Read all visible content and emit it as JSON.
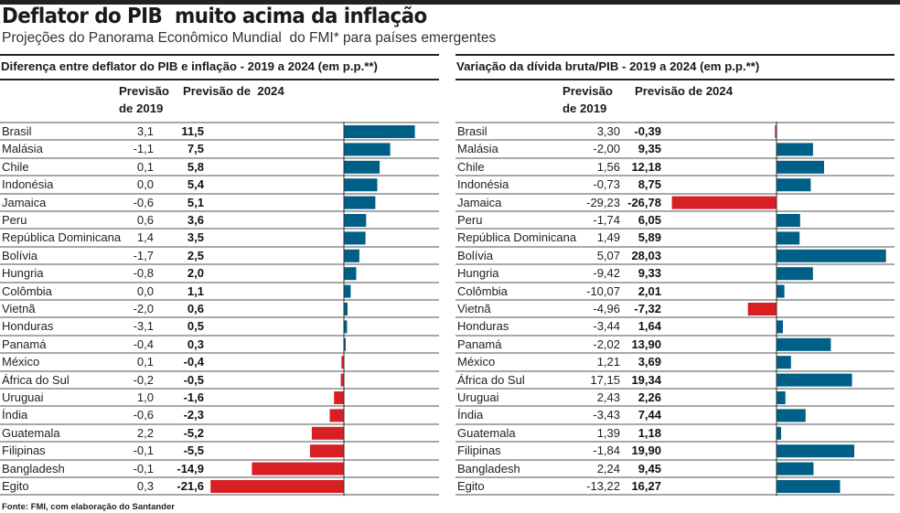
{
  "header": {
    "title": "Deflator do PIB  muito acima da inflação",
    "subtitle": "Projeções do Panorama Econômico Mundial  do FMI* para países emergentes"
  },
  "colors": {
    "positive": "#005f87",
    "negative": "#d71f24",
    "rule": "#a8a8a8",
    "axis": "#333333"
  },
  "source": "Fonte: FMI, com elaboração do Santander",
  "chart_data": [
    {
      "type": "bar",
      "orientation": "horizontal",
      "title": "Diferença entre deflator do PIB e inflação - 2019 a 2024 (em p.p.**)",
      "col_2019": "Previsão\nde 2019",
      "col_2024": "Previsão de  2024",
      "xlim": [
        -21.6,
        11.5
      ],
      "bar_series": "Previsão de 2024",
      "categories": [
        "Brasil",
        "Malásia",
        "Chile",
        "Indonésia",
        "Jamaica",
        "Peru",
        "República Dominicana",
        "Bolívia",
        "Hungria",
        "Colômbia",
        "Vietnã",
        "Honduras",
        "Panamá",
        "México",
        "África do Sul",
        "Uruguai",
        "Índia",
        "Guatemala",
        "Filipinas",
        "Bangladesh",
        "Egito"
      ],
      "values_2019": [
        "3,1",
        "-1,1",
        "0,1",
        "0,0",
        "-0,6",
        "0,6",
        "1,4",
        "-1,7",
        "-0,8",
        "0,0",
        "-2,0",
        "-3,1",
        "-0,4",
        "0,1",
        "-0,2",
        "1,0",
        "-0,6",
        "2,2",
        "-0,1",
        "-0,1",
        "0,3"
      ],
      "values_2024": [
        "11,5",
        "7,5",
        "5,8",
        "5,4",
        "5,1",
        "3,6",
        "3,5",
        "2,5",
        "2,0",
        "1,1",
        "0,6",
        "0,5",
        "0,3",
        "-0,4",
        "-0,5",
        "-1,6",
        "-2,3",
        "-5,2",
        "-5,5",
        "-14,9",
        "-21,6"
      ],
      "values": [
        11.5,
        7.5,
        5.8,
        5.4,
        5.1,
        3.6,
        3.5,
        2.5,
        2.0,
        1.1,
        0.6,
        0.5,
        0.3,
        -0.4,
        -0.5,
        -1.6,
        -2.3,
        -5.2,
        -5.5,
        -14.9,
        -21.6
      ]
    },
    {
      "type": "bar",
      "orientation": "horizontal",
      "title": "Variação da dívida bruta/PIB - 2019 a 2024 (em p.p.**)",
      "col_2019": "Previsão\nde 2019",
      "col_2024": "Previsão de 2024",
      "xlim": [
        -26.78,
        28.03
      ],
      "bar_series": "Previsão de 2024",
      "categories": [
        "Brasil",
        "Malásia",
        "Chile",
        "Indonésia",
        "Jamaica",
        "Peru",
        "República Dominicana",
        "Bolívia",
        "Hungria",
        "Colômbia",
        "Vietnã",
        "Honduras",
        "Panamá",
        "México",
        "África do Sul",
        "Uruguai",
        "Índia",
        "Guatemala",
        "Filipinas",
        "Bangladesh",
        "Egito"
      ],
      "values_2019": [
        "3,30",
        "-2,00",
        "1,56",
        "-0,73",
        "-29,23",
        "-1,74",
        "1,49",
        "5,07",
        "-9,42",
        "-10,07",
        "-4,96",
        "-3,44",
        "-2,02",
        "1,21",
        "17,15",
        "2,43",
        "-3,43",
        "1,39",
        "-1,84",
        "2,24",
        "-13,22"
      ],
      "values_2024": [
        "-0,39",
        "9,35",
        "12,18",
        "8,75",
        "-26,78",
        "6,05",
        "5,89",
        "28,03",
        "9,33",
        "2,01",
        "-7,32",
        "1,64",
        "13,90",
        "3,69",
        "19,34",
        "2,26",
        "7,44",
        "1,18",
        "19,90",
        "9,45",
        "16,27"
      ],
      "values": [
        -0.39,
        9.35,
        12.18,
        8.75,
        -26.78,
        6.05,
        5.89,
        28.03,
        9.33,
        2.01,
        -7.32,
        1.64,
        13.9,
        3.69,
        19.34,
        2.26,
        7.44,
        1.18,
        19.9,
        9.45,
        16.27
      ]
    }
  ]
}
